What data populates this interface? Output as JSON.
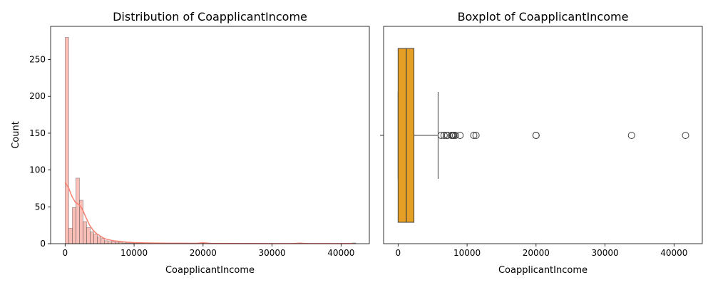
{
  "chart_data": [
    {
      "type": "histogram",
      "title": "Distribution of CoapplicantIncome",
      "xlabel": "CoapplicantIncome",
      "ylabel": "Count",
      "xlim": [
        -2100,
        44100
      ],
      "ylim": [
        0,
        295
      ],
      "xticks": [
        0,
        10000,
        20000,
        30000,
        40000
      ],
      "yticks": [
        0,
        50,
        100,
        150,
        200,
        250
      ],
      "bin_width": 520,
      "bin_start": 0,
      "bar_color": "#fa8072",
      "kde_color": "#fa8072",
      "counts": [
        280,
        21,
        49,
        89,
        59,
        30,
        22,
        16,
        13,
        9,
        7,
        4,
        3,
        3,
        2,
        2,
        1,
        1,
        1,
        1,
        1,
        1,
        0,
        1,
        0,
        0,
        0,
        0,
        0,
        0,
        0,
        0,
        0,
        0,
        0,
        0,
        0,
        0,
        1,
        0,
        0,
        0,
        0,
        0,
        0,
        0,
        0,
        0,
        0,
        0,
        0,
        0,
        0,
        0,
        0,
        0,
        0,
        0,
        0,
        0,
        0,
        0,
        0,
        0,
        0,
        1,
        0,
        0,
        0,
        0,
        0,
        0,
        0,
        0,
        0,
        0,
        0,
        0,
        0,
        0,
        1
      ],
      "kde": {
        "x": [
          0,
          500,
          1000,
          1500,
          2000,
          2500,
          3000,
          3500,
          4000,
          4500,
          5000,
          5500,
          6000,
          7000,
          8000,
          9000,
          10000,
          12000,
          15000,
          19000,
          20000,
          21000,
          25000,
          30000,
          33000,
          34000,
          35000,
          40000,
          41700
        ],
        "y": [
          83,
          76,
          64,
          56,
          53,
          47,
          36,
          26,
          19,
          14,
          11,
          8,
          6,
          4,
          3,
          2,
          1.5,
          1,
          0.6,
          0.5,
          1.2,
          0.5,
          0.2,
          0.1,
          0.3,
          0.6,
          0.3,
          0.1,
          0.2
        ]
      }
    },
    {
      "type": "boxplot",
      "title": "Boxplot of CoapplicantIncome",
      "xlabel": "CoapplicantIncome",
      "xlim": [
        -2100,
        44100
      ],
      "xticks": [
        0,
        10000,
        20000,
        30000,
        40000
      ],
      "box_color": "#e69f25",
      "q1": 0,
      "median": 1190,
      "q3": 2300,
      "whisker_low": 0,
      "whisker_high": 5800,
      "outliers": [
        6250,
        6670,
        7000,
        7170,
        7750,
        7870,
        8000,
        8100,
        8330,
        8980,
        10970,
        11300,
        20000,
        20000,
        33840,
        41670
      ]
    }
  ]
}
